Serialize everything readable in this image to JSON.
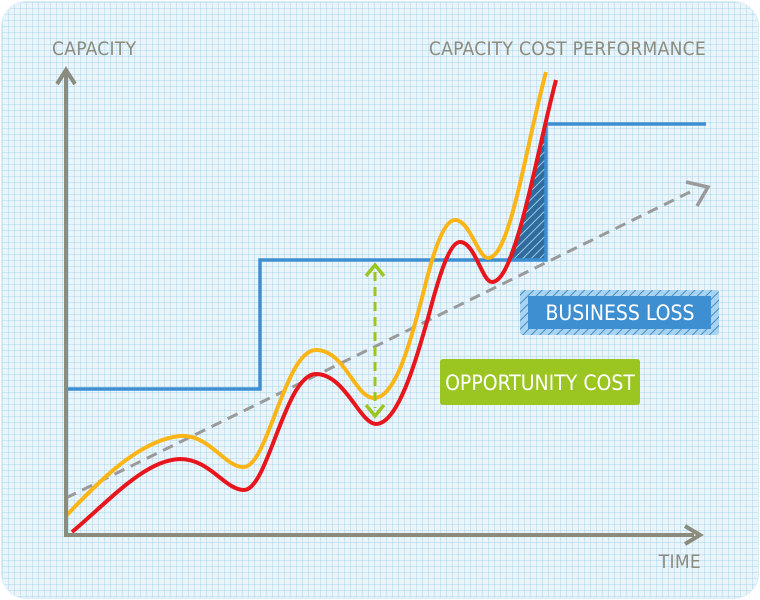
{
  "labels": {
    "y_axis": "CAPACITY",
    "x_axis": "TIME",
    "title": "CAPACITY COST PERFORMANCE",
    "business_loss": "BUSINESS LOSS",
    "opportunity_cost": "OPPORTUNITY COST"
  },
  "colors": {
    "axis": "#8b8b7e",
    "capacity_step": "#3d8fd1",
    "demand_orange": "#fbb517",
    "demand_red": "#e8151c",
    "trend": "#9a9a9a",
    "opportunity": "#9bc521",
    "business_loss_box": "#3d8fd1"
  }
}
